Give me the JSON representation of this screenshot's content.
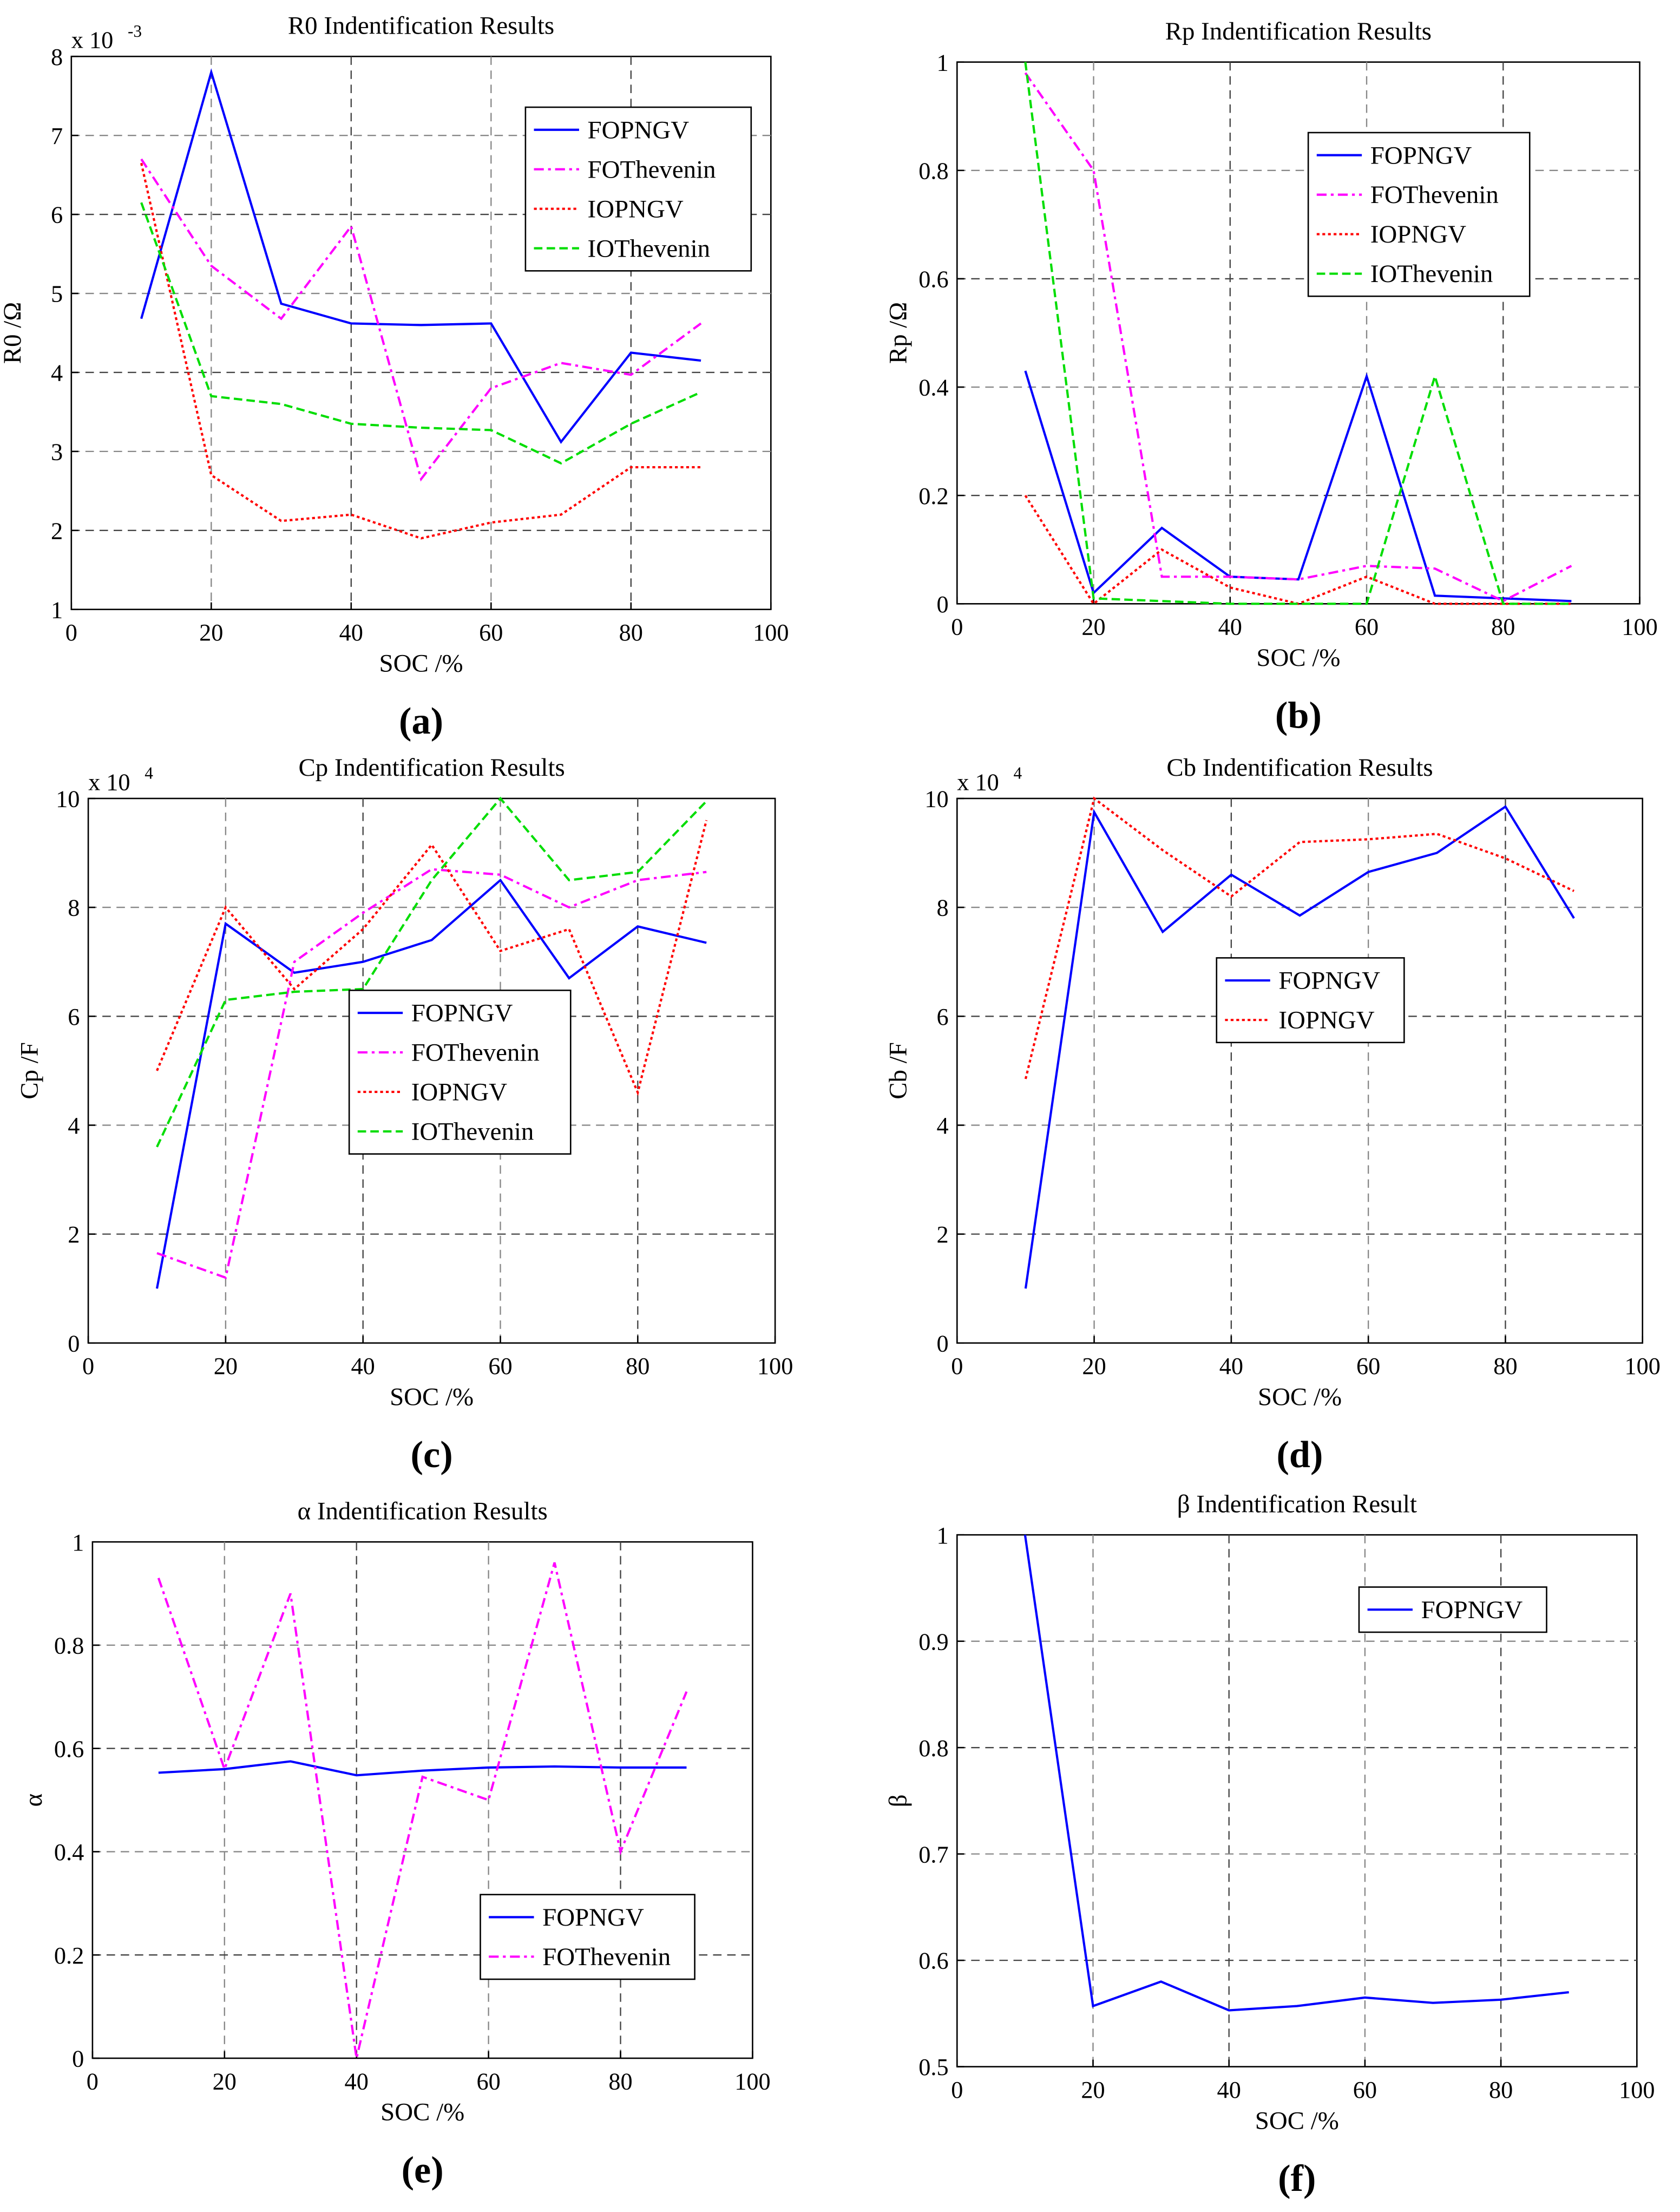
{
  "chart_data": [
    {
      "type": "line",
      "title": "R0 Indentification Results",
      "panel_label": "(a)",
      "xlabel": "SOC /%",
      "ylabel": "R0 /Ω",
      "y_scale_base": "x 10",
      "y_scale_exp": "-3",
      "xlim": [
        0,
        100
      ],
      "ylim": [
        1,
        8
      ],
      "grid": true,
      "legend": "top-right",
      "xticks": [
        "0",
        "20",
        "40",
        "60",
        "80",
        "100"
      ],
      "yticks": [
        "1",
        "2",
        "3",
        "4",
        "5",
        "6",
        "7",
        "8"
      ],
      "x": [
        10,
        20,
        30,
        40,
        50,
        60,
        70,
        80,
        90
      ],
      "series": [
        {
          "name": "FOPNGV",
          "values": [
            4.68,
            7.8,
            4.87,
            4.62,
            4.6,
            4.62,
            3.12,
            4.25,
            4.15
          ]
        },
        {
          "name": "FOThevenin",
          "values": [
            6.7,
            5.35,
            4.68,
            5.85,
            2.65,
            3.8,
            4.12,
            3.97,
            4.62
          ]
        },
        {
          "name": "IOPNGV",
          "values": [
            6.65,
            2.7,
            2.12,
            2.2,
            1.9,
            2.1,
            2.2,
            2.8,
            2.8
          ]
        },
        {
          "name": "IOThevenin",
          "values": [
            6.15,
            3.7,
            3.6,
            3.35,
            3.3,
            3.27,
            2.85,
            3.35,
            3.75
          ]
        }
      ]
    },
    {
      "type": "line",
      "title": "Rp Indentification Results",
      "panel_label": "(b)",
      "xlabel": "SOC /%",
      "ylabel": "Rp /Ω",
      "xlim": [
        0,
        100
      ],
      "ylim": [
        0,
        1
      ],
      "grid": true,
      "legend": "top-right",
      "xticks": [
        "0",
        "20",
        "40",
        "60",
        "80",
        "100"
      ],
      "yticks": [
        "0",
        "0.2",
        "0.4",
        "0.6",
        "0.8",
        "1"
      ],
      "x": [
        10,
        20,
        30,
        40,
        50,
        60,
        70,
        80,
        90
      ],
      "series": [
        {
          "name": "FOPNGV",
          "values": [
            0.43,
            0.02,
            0.14,
            0.05,
            0.045,
            0.42,
            0.015,
            0.01,
            0.005
          ]
        },
        {
          "name": "FOThevenin",
          "values": [
            0.98,
            0.8,
            0.05,
            0.05,
            0.045,
            0.07,
            0.065,
            0.005,
            0.07
          ]
        },
        {
          "name": "IOPNGV",
          "values": [
            0.2,
            0.0,
            0.1,
            0.03,
            0.0,
            0.05,
            0.0,
            0.0,
            0.0
          ]
        },
        {
          "name": "IOThevenin",
          "values": [
            1.0,
            0.01,
            0.005,
            0.0,
            0.0,
            0.0,
            0.42,
            0.0,
            0.0
          ]
        }
      ]
    },
    {
      "type": "line",
      "title": "Cp Indentification Results",
      "panel_label": "(c)",
      "xlabel": "SOC /%",
      "ylabel": "Cp /F",
      "y_scale_base": "x 10",
      "y_scale_exp": "4",
      "xlim": [
        0,
        100
      ],
      "ylim": [
        0,
        10
      ],
      "grid": true,
      "legend": "center",
      "xticks": [
        "0",
        "20",
        "40",
        "60",
        "80",
        "100"
      ],
      "yticks": [
        "0",
        "2",
        "4",
        "6",
        "8",
        "10"
      ],
      "x": [
        10,
        20,
        30,
        40,
        50,
        60,
        70,
        80,
        90
      ],
      "series": [
        {
          "name": "FOPNGV",
          "values": [
            1.0,
            7.7,
            6.8,
            7.0,
            7.4,
            8.5,
            6.7,
            7.65,
            7.35
          ]
        },
        {
          "name": "FOThevenin",
          "values": [
            1.65,
            1.2,
            7.0,
            7.9,
            8.7,
            8.6,
            8.0,
            8.5,
            8.65
          ]
        },
        {
          "name": "IOPNGV",
          "values": [
            5.0,
            8.0,
            6.5,
            7.6,
            9.15,
            7.2,
            7.6,
            4.6,
            9.6
          ]
        },
        {
          "name": "IOThevenin",
          "values": [
            3.6,
            6.3,
            6.45,
            6.5,
            8.5,
            10.0,
            8.5,
            8.65,
            9.95
          ]
        }
      ]
    },
    {
      "type": "line",
      "title": "Cb Indentification Results",
      "panel_label": "(d)",
      "xlabel": "SOC /%",
      "ylabel": "Cb /F",
      "y_scale_base": "x 10",
      "y_scale_exp": "4",
      "xlim": [
        0,
        100
      ],
      "ylim": [
        0,
        10
      ],
      "grid": true,
      "legend": "center",
      "xticks": [
        "0",
        "20",
        "40",
        "60",
        "80",
        "100"
      ],
      "yticks": [
        "0",
        "2",
        "4",
        "6",
        "8",
        "10"
      ],
      "x": [
        10,
        20,
        30,
        40,
        50,
        60,
        70,
        80,
        90
      ],
      "series": [
        {
          "name": "FOPNGV",
          "values": [
            1.0,
            9.75,
            7.55,
            8.6,
            7.85,
            8.65,
            9.0,
            9.85,
            7.8
          ]
        },
        {
          "name": "IOPNGV",
          "values": [
            4.85,
            10.0,
            9.05,
            8.2,
            9.2,
            9.25,
            9.35,
            8.9,
            8.3
          ]
        }
      ]
    },
    {
      "type": "line",
      "title": "α Indentification Results",
      "panel_label": "(e)",
      "xlabel": "SOC /%",
      "ylabel": "α",
      "xlim": [
        0,
        100
      ],
      "ylim": [
        0,
        1
      ],
      "grid": true,
      "legend": "bottom-right",
      "xticks": [
        "0",
        "20",
        "40",
        "60",
        "80",
        "100"
      ],
      "yticks": [
        "0",
        "0.2",
        "0.4",
        "0.6",
        "0.8",
        "1"
      ],
      "x": [
        10,
        20,
        30,
        40,
        50,
        60,
        70,
        80,
        90
      ],
      "series": [
        {
          "name": "FOPNGV",
          "values": [
            0.553,
            0.56,
            0.575,
            0.548,
            0.557,
            0.563,
            0.565,
            0.563,
            0.563
          ]
        },
        {
          "name": "FOThevenin",
          "values": [
            0.93,
            0.56,
            0.9,
            0.0,
            0.545,
            0.5,
            0.96,
            0.4,
            0.71
          ]
        }
      ]
    },
    {
      "type": "line",
      "title": "β Indentification Result",
      "panel_label": "(f)",
      "xlabel": "SOC /%",
      "ylabel": "β",
      "xlim": [
        0,
        100
      ],
      "ylim": [
        0.5,
        1
      ],
      "grid": true,
      "legend": "top-right",
      "xticks": [
        "0",
        "20",
        "40",
        "60",
        "80",
        "100"
      ],
      "yticks": [
        "0.5",
        "0.6",
        "0.7",
        "0.8",
        "0.9",
        "1"
      ],
      "x": [
        10,
        20,
        30,
        40,
        50,
        60,
        70,
        80,
        90
      ],
      "series": [
        {
          "name": "FOPNGV",
          "values": [
            1.0,
            0.557,
            0.58,
            0.553,
            0.557,
            0.565,
            0.56,
            0.563,
            0.57
          ]
        }
      ]
    }
  ],
  "colors": {
    "FOPNGV": "#0000ff",
    "FOThevenin": "#ff00ff",
    "IOPNGV": "#ff0000",
    "IOThevenin": "#00dd00"
  }
}
